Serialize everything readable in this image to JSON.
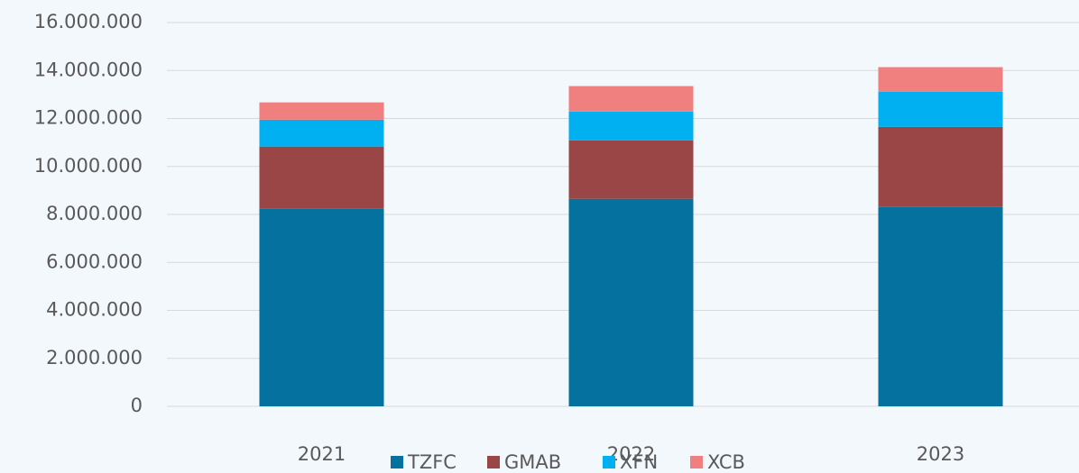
{
  "chart_data": {
    "type": "stacked_bar",
    "categories": [
      "2021",
      "2022",
      "2023"
    ],
    "series": [
      {
        "name": "TZFC",
        "color": "#05719f",
        "values": [
          8230000,
          8650000,
          8310000
        ]
      },
      {
        "name": "GMAB",
        "color": "#9a4646",
        "values": [
          2600000,
          2440000,
          3340000
        ]
      },
      {
        "name": "XFN",
        "color": "#00b0f0",
        "values": [
          1120000,
          1200000,
          1470000
        ]
      },
      {
        "name": "XCB",
        "color": "#f08080",
        "values": [
          720000,
          1060000,
          1020000
        ]
      }
    ],
    "ylim": [
      0,
      16000000
    ],
    "yticks": [
      0,
      {
        "value": 2000000,
        "label": "2.000.000"
      },
      {
        "value": 4000000,
        "label": "4.000.000"
      },
      {
        "value": 6000000,
        "label": "6.000.000"
      },
      {
        "value": 8000000,
        "label": "8.000.000"
      },
      {
        "value": 10000000,
        "label": "10.000.000"
      },
      {
        "value": 12000000,
        "label": "12.000.000"
      },
      {
        "value": 14000000,
        "label": "14.000.000"
      },
      {
        "value": 16000000,
        "label": "16.000.000"
      }
    ],
    "grid": true,
    "legend": "bottom"
  }
}
